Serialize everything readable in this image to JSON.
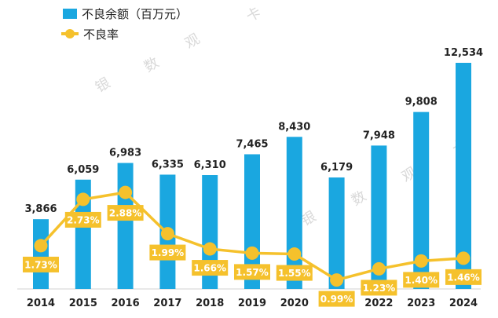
{
  "chart_data": {
    "type": "bar",
    "title": "",
    "xlabel": "",
    "ylabel": "",
    "categories": [
      "2014",
      "2015",
      "2016",
      "2017",
      "2018",
      "2019",
      "2020",
      "2021",
      "2022",
      "2023",
      "2024"
    ],
    "series": [
      {
        "name": "不良余额（百万元）",
        "type": "bar",
        "color": "#1aa7e0",
        "values": [
          3866,
          6059,
          6983,
          6335,
          6310,
          7465,
          8430,
          6179,
          7948,
          9808,
          12534
        ],
        "labels": [
          "3,866",
          "6,059",
          "6,983",
          "6,335",
          "6,310",
          "7,465",
          "8,430",
          "6,179",
          "7,948",
          "9,808",
          "12,534"
        ]
      },
      {
        "name": "不良率",
        "type": "line",
        "color": "#f5c12c",
        "values": [
          1.73,
          2.73,
          2.88,
          1.99,
          1.66,
          1.57,
          1.55,
          0.99,
          1.23,
          1.4,
          1.46
        ],
        "labels": [
          "1.73%",
          "2.73%",
          "2.88%",
          "1.99%",
          "1.66%",
          "1.57%",
          "1.55%",
          "0.99%",
          "1.23%",
          "1.40%",
          "1.46%"
        ]
      }
    ],
    "ylim": [
      0,
      12534
    ],
    "y2lim": [
      0,
      4.0
    ],
    "grid": false,
    "legend": "top-left"
  },
  "watermark": [
    "银",
    "数",
    "观",
    "卡"
  ]
}
